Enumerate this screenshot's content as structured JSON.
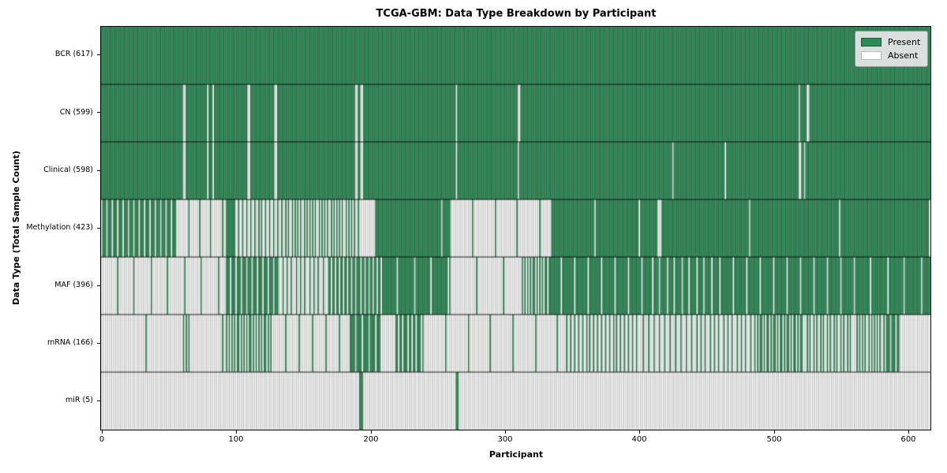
{
  "chart_data": {
    "type": "heatmap",
    "title": "TCGA-GBM: Data Type Breakdown by Participant",
    "xlabel": "Participant",
    "ylabel": "Data Type (Total Sample Count)",
    "x_tick_labels": [
      "0",
      "100",
      "200",
      "300",
      "400",
      "500",
      "600"
    ],
    "x_tick_values": [
      0,
      100,
      200,
      300,
      400,
      500,
      600
    ],
    "x_range": [
      0,
      617
    ],
    "total_participants": 617,
    "grid": false,
    "legend": {
      "position": "upper right",
      "entries": [
        {
          "label": "Present",
          "color": "#2e8b57"
        },
        {
          "label": "Absent",
          "color": "#ffffff"
        }
      ]
    },
    "colors": {
      "present_fill": "#2e8b57",
      "absent_fill": "#ffffff",
      "present_edge": "rgba(14,44,28,0.65)",
      "absent_edge": "rgba(128,128,128,0.95)",
      "row_separator": "rgba(0,0,0,0.85)",
      "spine": "#000000"
    },
    "rows": [
      {
        "label": "BCR (617)",
        "data_type": "BCR",
        "count": 617,
        "default": "present",
        "segments": [
          [
            0,
            617,
            1.0
          ]
        ]
      },
      {
        "label": "CN (599)",
        "data_type": "CN",
        "count": 599,
        "default": "present",
        "absent_indices": [
          61,
          62,
          79,
          83,
          109,
          110,
          129,
          130,
          189,
          190,
          193,
          194,
          264,
          310,
          311,
          519,
          525,
          526
        ]
      },
      {
        "label": "Clinical (598)",
        "data_type": "Clinical",
        "count": 598,
        "default": "present",
        "absent_indices": [
          61,
          62,
          79,
          83,
          109,
          110,
          129,
          130,
          189,
          190,
          193,
          194,
          264,
          310,
          425,
          464,
          519,
          520,
          523
        ]
      },
      {
        "label": "Methylation (423)",
        "data_type": "Methylation",
        "count": 423,
        "default": "absent",
        "segments": [
          [
            0,
            57,
            0.75
          ],
          [
            57,
            93,
            0.12
          ],
          [
            93,
            100,
            1.0
          ],
          [
            100,
            140,
            0.35
          ],
          [
            140,
            192,
            0.45
          ],
          [
            192,
            203,
            0.05
          ],
          [
            203,
            260,
            0.98
          ],
          [
            260,
            334,
            0.06
          ],
          [
            334,
            414,
            0.97
          ],
          [
            414,
            416,
            0.0
          ],
          [
            416,
            617,
            0.985
          ]
        ]
      },
      {
        "label": "MAF (396)",
        "data_type": "MAF",
        "count": 396,
        "default": "absent",
        "segments": [
          [
            0,
            92,
            0.08
          ],
          [
            92,
            132,
            0.75
          ],
          [
            132,
            168,
            0.3
          ],
          [
            168,
            208,
            0.68
          ],
          [
            208,
            260,
            0.92
          ],
          [
            260,
            312,
            0.05
          ],
          [
            312,
            332,
            0.55
          ],
          [
            332,
            410,
            0.9
          ],
          [
            410,
            460,
            0.82
          ],
          [
            460,
            560,
            0.9
          ],
          [
            560,
            617,
            0.92
          ]
        ]
      },
      {
        "label": "mRNA (166)",
        "data_type": "mRNA",
        "count": 166,
        "default": "absent",
        "segments": [
          [
            0,
            60,
            0.03
          ],
          [
            60,
            66,
            0.5
          ],
          [
            66,
            92,
            0.04
          ],
          [
            92,
            128,
            0.55
          ],
          [
            128,
            184,
            0.1
          ],
          [
            184,
            208,
            0.8
          ],
          [
            208,
            218,
            0.05
          ],
          [
            218,
            240,
            0.7
          ],
          [
            240,
            344,
            0.06
          ],
          [
            344,
            400,
            0.35
          ],
          [
            400,
            440,
            0.25
          ],
          [
            440,
            487,
            0.3
          ],
          [
            487,
            523,
            0.6
          ],
          [
            523,
            560,
            0.4
          ],
          [
            560,
            583,
            0.45
          ],
          [
            583,
            594,
            0.75
          ],
          [
            594,
            617,
            0.02
          ]
        ]
      },
      {
        "label": "miR (5)",
        "data_type": "miR",
        "count": 5,
        "default": "absent",
        "present_indices": [
          192,
          193,
          194,
          264,
          265
        ]
      }
    ]
  }
}
